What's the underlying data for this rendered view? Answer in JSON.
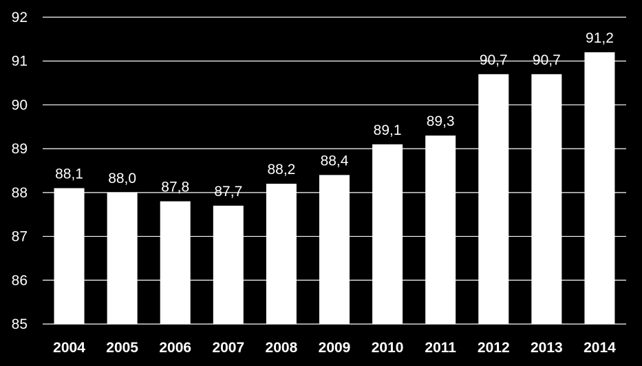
{
  "chart_data": {
    "type": "bar",
    "categories": [
      "2004",
      "2005",
      "2006",
      "2007",
      "2008",
      "2009",
      "2010",
      "2011",
      "2012",
      "2013",
      "2014"
    ],
    "values": [
      88.1,
      88.0,
      87.8,
      87.7,
      88.2,
      88.4,
      89.1,
      89.3,
      90.7,
      90.7,
      91.2
    ],
    "data_labels": [
      "88,1",
      "88,0",
      "87,8",
      "87,7",
      "88,2",
      "88,4",
      "89,1",
      "89,3",
      "90,7",
      "90,7",
      "91,2"
    ],
    "y_ticks": [
      "85",
      "86",
      "87",
      "88",
      "89",
      "90",
      "91",
      "92"
    ],
    "ylim": [
      85,
      92
    ],
    "grid": true,
    "colors": {
      "background": "#000000",
      "bar": "#ffffff",
      "text": "#ffffff",
      "grid": "#ffffff"
    }
  }
}
